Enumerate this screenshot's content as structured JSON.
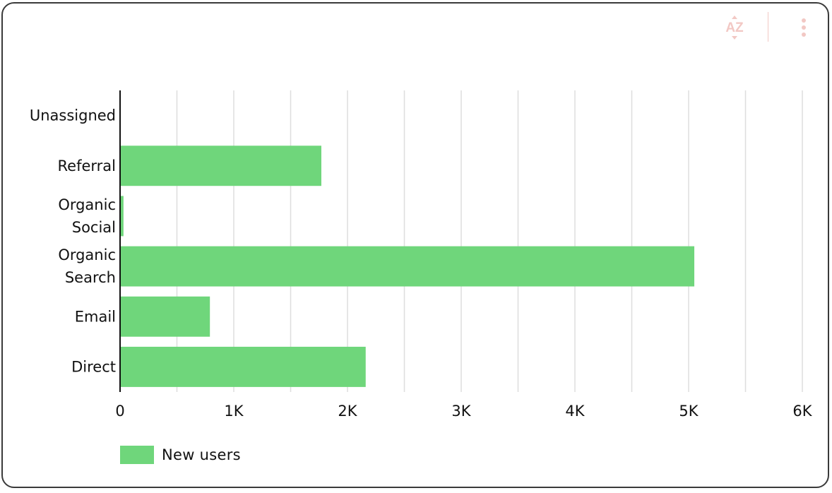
{
  "toolbar": {
    "sort_icon_text": "AZ",
    "sort_icon": "sort-az-icon",
    "menu_icon": "more-vert-icon",
    "icon_color": "#f2c8c4"
  },
  "chart_data": {
    "type": "bar",
    "orientation": "horizontal",
    "categories": [
      "Unassigned",
      "Referral",
      "Organic Social",
      "Organic Search",
      "Email",
      "Direct"
    ],
    "series": [
      {
        "name": "New users",
        "values": [
          0,
          1770,
          30,
          5050,
          790,
          2160
        ],
        "color": "#6fd67b"
      }
    ],
    "xlim": [
      0,
      6000
    ],
    "x_ticks": [
      0,
      1000,
      2000,
      3000,
      4000,
      5000,
      6000
    ],
    "x_tick_labels": [
      "0",
      "1K",
      "2K",
      "3K",
      "4K",
      "5K",
      "6K"
    ],
    "minor_gridlines": true,
    "grid": true,
    "legend_position": "bottom-left",
    "title": "",
    "xlabel": "",
    "ylabel": ""
  }
}
